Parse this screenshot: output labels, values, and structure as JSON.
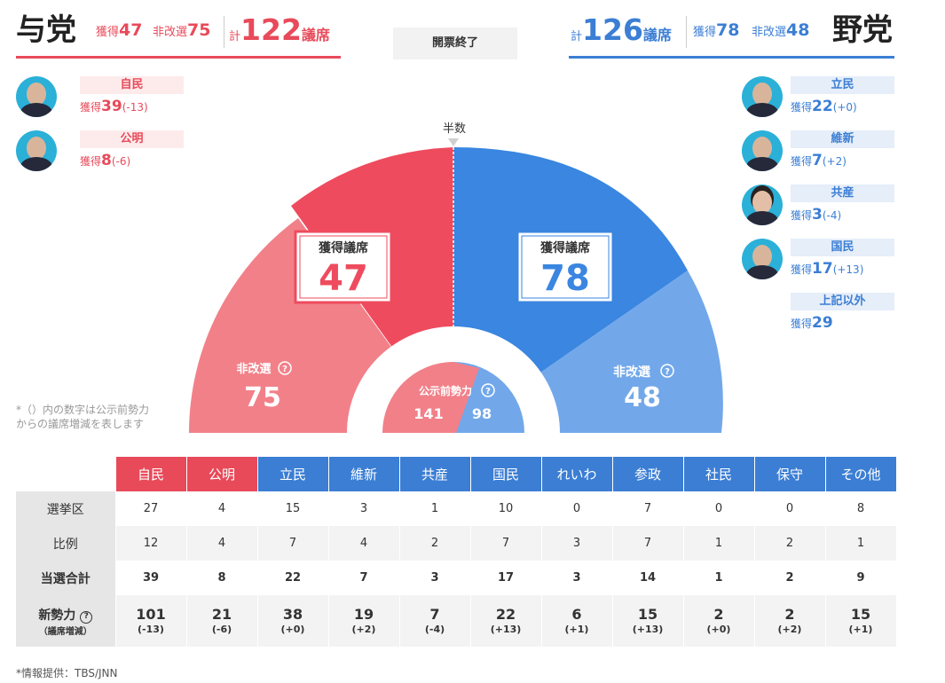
{
  "header": {
    "ruling": {
      "name": "与党",
      "won_label": "獲得",
      "won": "47",
      "nonup_label": "非改選",
      "nonup": "75",
      "total_label": "計",
      "total": "122",
      "unit": "議席"
    },
    "opposition": {
      "name": "野党",
      "won_label": "獲得",
      "won": "78",
      "nonup_label": "非改選",
      "nonup": "48",
      "total_label": "計",
      "total": "126",
      "unit": "議席"
    },
    "status": "開票終了"
  },
  "parties_left": [
    {
      "name": "自民",
      "won_label": "獲得",
      "won": "39",
      "delta": "(-13)"
    },
    {
      "name": "公明",
      "won_label": "獲得",
      "won": "8",
      "delta": "(-6)"
    }
  ],
  "parties_right": [
    {
      "name": "立民",
      "won_label": "獲得",
      "won": "22",
      "delta": "(+0)"
    },
    {
      "name": "維新",
      "won_label": "獲得",
      "won": "7",
      "delta": "(+2)"
    },
    {
      "name": "共産",
      "won_label": "獲得",
      "won": "3",
      "delta": "(-4)"
    },
    {
      "name": "国民",
      "won_label": "獲得",
      "won": "17",
      "delta": "(+13)"
    },
    {
      "name": "上記以外",
      "won_label": "獲得",
      "won": "29",
      "delta": ""
    }
  ],
  "arc": {
    "half_label": "半数",
    "won_label": "獲得議席",
    "ruling_won": "47",
    "opp_won": "78",
    "nonup_label": "非改選",
    "ruling_nonup": "75",
    "opp_nonup": "48",
    "pre_label": "公示前勢力",
    "pre_ruling": "141",
    "pre_opp": "98"
  },
  "note": [
    "*（）内の数字は公示前勢力",
    "からの議席増減を表します"
  ],
  "table": {
    "columns": [
      "自民",
      "公明",
      "立民",
      "維新",
      "共産",
      "国民",
      "れいわ",
      "参政",
      "社民",
      "保守",
      "その他"
    ],
    "rows": [
      {
        "label": "選挙区",
        "values": [
          "27",
          "4",
          "15",
          "3",
          "1",
          "10",
          "0",
          "7",
          "0",
          "0",
          "8"
        ]
      },
      {
        "label": "比例",
        "values": [
          "12",
          "4",
          "7",
          "4",
          "2",
          "7",
          "3",
          "7",
          "1",
          "2",
          "1"
        ]
      },
      {
        "label": "当選合計",
        "values": [
          "39",
          "8",
          "22",
          "7",
          "3",
          "17",
          "3",
          "14",
          "1",
          "2",
          "9"
        ]
      }
    ],
    "new_power": {
      "label": "新勢力",
      "sublabel": "（議席増減）",
      "values": [
        "101",
        "21",
        "38",
        "19",
        "7",
        "22",
        "6",
        "15",
        "2",
        "2",
        "15"
      ],
      "deltas": [
        "(-13)",
        "(-6)",
        "(+0)",
        "(+2)",
        "(-4)",
        "(+13)",
        "(+1)",
        "(+13)",
        "(+0)",
        "(+2)",
        "(+1)"
      ]
    }
  },
  "source": "*情報提供：TBS/JNN",
  "colors": {
    "ruling_dark": "#ef4b5e",
    "ruling_light": "#f28089",
    "opp_dark": "#3a86e0",
    "opp_light": "#72a8ea"
  }
}
